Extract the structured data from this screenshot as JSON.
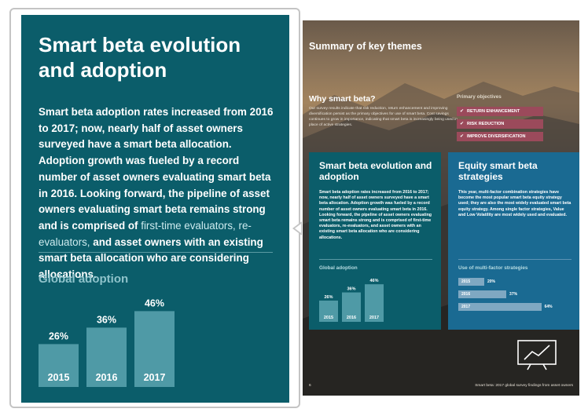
{
  "zoom": {
    "title": "Smart beta evolution and adoption",
    "body_bold": "Smart beta adoption rates increased from 2016 to 2017; now, nearly half of asset owners surveyed have a smart beta allocation. Adoption growth was fueled by a record number of asset owners evaluating smart beta in 2016. Looking forward, the pipeline of asset owners evaluating smart beta remains strong and is comprised of",
    "body_light": "first-time evaluators, re-evaluators,",
    "body_tail": "and asset owners with an existing smart beta allocation who are considering allocations.",
    "subtitle": "Global adoption"
  },
  "chart_data": [
    {
      "type": "bar",
      "title": "Global adoption",
      "categories": [
        "2015",
        "2016",
        "2017"
      ],
      "values": [
        26,
        36,
        46
      ],
      "value_labels": [
        "26%",
        "36%",
        "46%"
      ],
      "ylim": [
        0,
        50
      ],
      "xlabel": "",
      "ylabel": ""
    },
    {
      "type": "bar",
      "orientation": "horizontal",
      "title": "Use of multi-factor strategies",
      "categories": [
        "2015",
        "2016",
        "2017"
      ],
      "values": [
        20,
        37,
        64
      ],
      "value_labels": [
        "20%",
        "37%",
        "64%"
      ],
      "xlim": [
        0,
        100
      ]
    }
  ],
  "page": {
    "title": "Summary of key themes",
    "why_title": "Why smart beta?",
    "why_text": "Our survey results indicate that risk reduction, return enhancement and improving diversification persist as the primary objectives for use of smart beta. Cost savings continues to grow in importance, indicating that smart beta is increasingly being used in place of active strategies.",
    "objectives_title": "Primary objectives",
    "objectives": [
      "RETURN ENHANCEMENT",
      "RISK REDUCTION",
      "IMPROVE DIVERSIFICATION"
    ],
    "card_a": {
      "title": "Smart beta evolution and adoption",
      "body": "Smart beta adoption rates increased from 2016 to 2017; now, nearly half of asset owners surveyed have a smart beta allocation. Adoption growth was fueled by a record number of asset owners evaluating smart beta in 2016. Looking forward, the pipeline of asset owners evaluating smart beta remains strong and is comprised of first-time evaluators, re-evaluators, and asset owners with an existing smart beta allocation who are considering allocations.",
      "subtitle": "Global adoption"
    },
    "card_b": {
      "title": "Equity smart beta strategies",
      "body": "This year, multi-factor combination strategies have become the most popular smart beta equity strategy used; they are also the most widely evaluated smart beta equity strategy. Among single factor strategies, Value and Low Volatility are most widely used and evaluated.",
      "subtitle": "Use of multi-factor strategies"
    },
    "page_number": "6",
    "footer": "Smart beta: 2017 global survey findings from asset owners"
  },
  "colors": {
    "teal": "#0b5d6a",
    "blue": "#1a6a92",
    "bar_light": "#4f9aa6",
    "tag": "#9b4a5b"
  },
  "icons": [
    "checkmark-icon",
    "trend-chart-icon"
  ]
}
